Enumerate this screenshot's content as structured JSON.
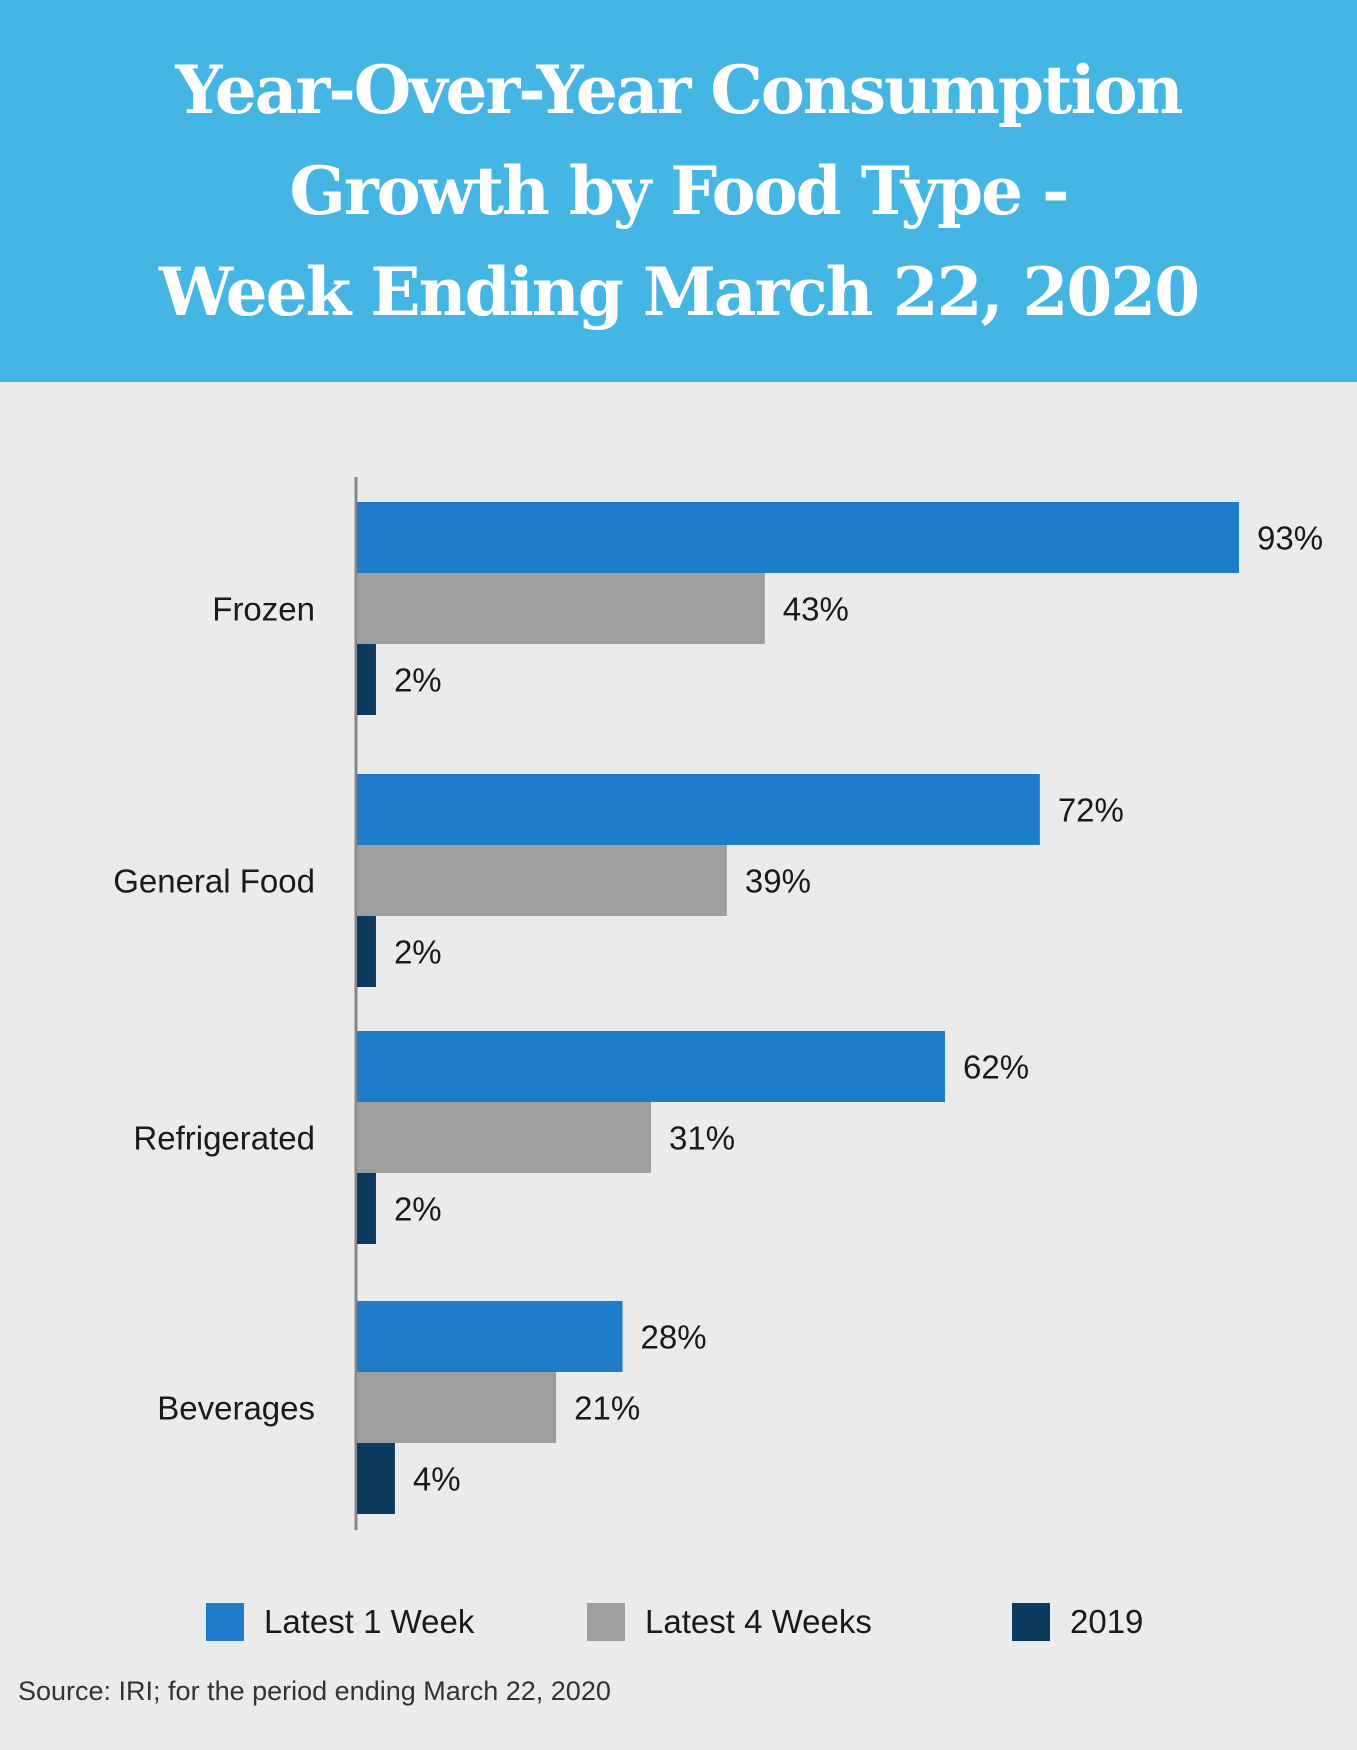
{
  "header": {
    "title_lines": [
      "Year-Over-Year Consumption",
      "Growth by Food Type -",
      "Week Ending March 22, 2020"
    ]
  },
  "colors": {
    "header_bg": "#45b6e3",
    "latest_1_week": "#1e7cc8",
    "latest_4_weeks": "#9d9ea0",
    "y2019": "#0b3a5c",
    "axis": "#888888"
  },
  "chart_data": {
    "type": "bar",
    "orientation": "horizontal",
    "title": "Year-Over-Year Consumption Growth by Food Type - Week Ending March 22, 2020",
    "categories": [
      "Frozen",
      "General Food",
      "Refrigerated",
      "Beverages"
    ],
    "series": [
      {
        "name": "Latest 1 Week",
        "values": [
          93,
          72,
          62,
          28
        ],
        "labels": [
          "93%",
          "72%",
          "62%",
          "28%"
        ],
        "color": "#1e7cc8"
      },
      {
        "name": "Latest 4 Weeks",
        "values": [
          43,
          39,
          31,
          21
        ],
        "labels": [
          "43%",
          "39%",
          "31%",
          "21%"
        ],
        "color": "#9d9ea0"
      },
      {
        "name": "2019",
        "values": [
          2,
          2,
          2,
          4
        ],
        "labels": [
          "2%",
          "2%",
          "2%",
          "4%"
        ],
        "color": "#0b3a5c"
      }
    ],
    "xlim": [
      0,
      93
    ],
    "grid": false,
    "legend_position": "bottom",
    "xlabel": "",
    "ylabel": ""
  },
  "legend": {
    "items": [
      "Latest 1 Week",
      "Latest 4 Weeks",
      "2019"
    ]
  },
  "source": "Source: IRI; for the period ending March 22, 2020"
}
